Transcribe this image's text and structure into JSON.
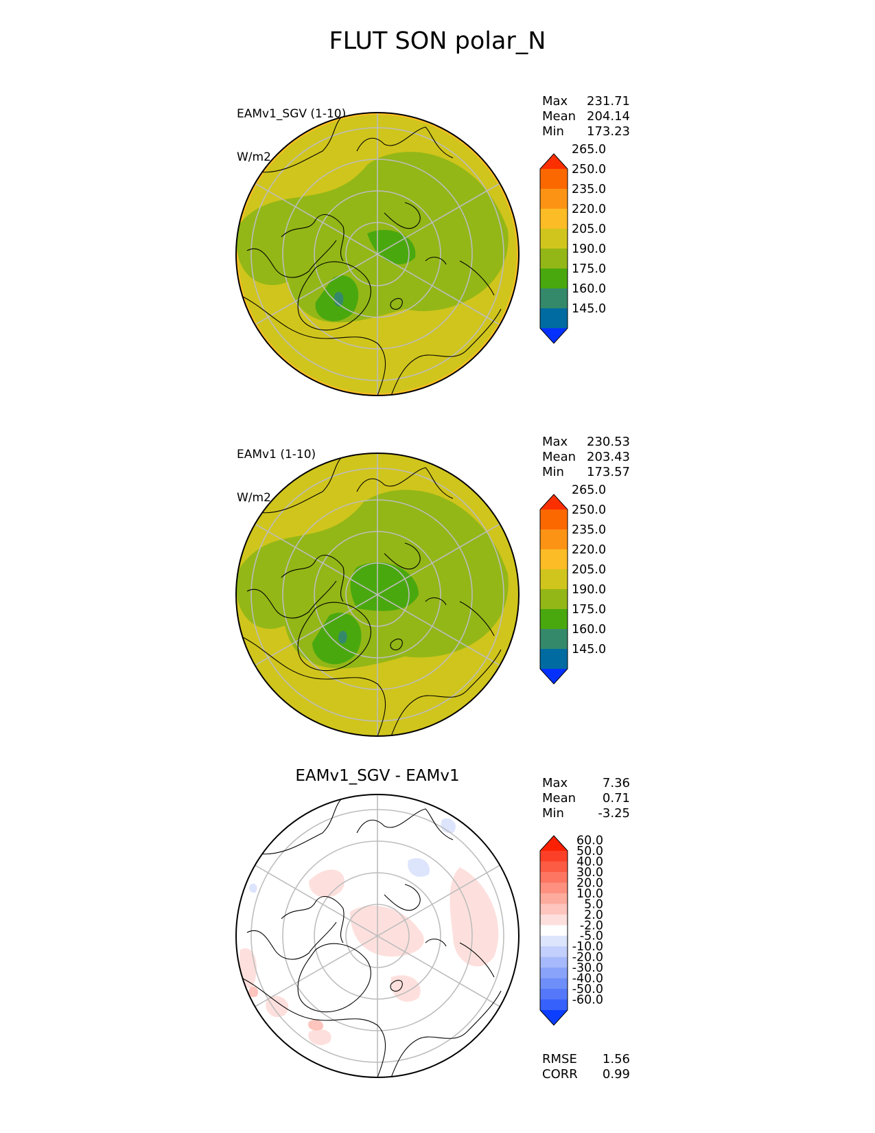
{
  "title": "FLUT SON polar_N",
  "units": "W/m2",
  "panels": [
    {
      "id": "test",
      "label": "EAMv1_SGV (1-10)",
      "units": "W/m2",
      "stats": [
        {
          "name": "Max",
          "value": "231.71"
        },
        {
          "name": "Mean",
          "value": "204.14"
        },
        {
          "name": "Min",
          "value": "173.23"
        }
      ]
    },
    {
      "id": "reference",
      "label": "EAMv1 (1-10)",
      "units": "W/m2",
      "stats": [
        {
          "name": "Max",
          "value": "230.53"
        },
        {
          "name": "Mean",
          "value": "203.43"
        },
        {
          "name": "Min",
          "value": "173.57"
        }
      ]
    },
    {
      "id": "difference",
      "label": "EAMv1_SGV - EAMv1",
      "stats": [
        {
          "name": "Max",
          "value": "7.36"
        },
        {
          "name": "Mean",
          "value": "0.71"
        },
        {
          "name": "Min",
          "value": "-3.25"
        }
      ],
      "metrics": [
        {
          "name": "RMSE",
          "value": "1.56"
        },
        {
          "name": "CORR",
          "value": "0.99"
        }
      ]
    }
  ],
  "colorbars": {
    "main": {
      "levels": [
        "145.0",
        "160.0",
        "175.0",
        "190.0",
        "205.0",
        "220.0",
        "235.0",
        "250.0",
        "265.0"
      ],
      "colors": [
        "#0531ff",
        "#006ba1",
        "#35896b",
        "#4aa80f",
        "#93b717",
        "#d0c51c",
        "#fbbc25",
        "#fd9315",
        "#fc6800",
        "#fc2f00"
      ]
    },
    "diff": {
      "levels": [
        "-60.0",
        "-50.0",
        "-40.0",
        "-30.0",
        "-20.0",
        "-10.0",
        "-5.0",
        "-2.0",
        "2.0",
        "5.0",
        "10.0",
        "20.0",
        "30.0",
        "40.0",
        "50.0",
        "60.0"
      ],
      "colors": [
        "#0c3eff",
        "#3661fb",
        "#5578fb",
        "#6e8ef9",
        "#8aa3fa",
        "#a6b9fb",
        "#c3cffc",
        "#dde5fd",
        "#ffffff",
        "#fde0dd",
        "#fdc5bd",
        "#fdab9d",
        "#fd907f",
        "#fd7661",
        "#fc5b44",
        "#fc4027",
        "#fc2105"
      ]
    }
  }
}
